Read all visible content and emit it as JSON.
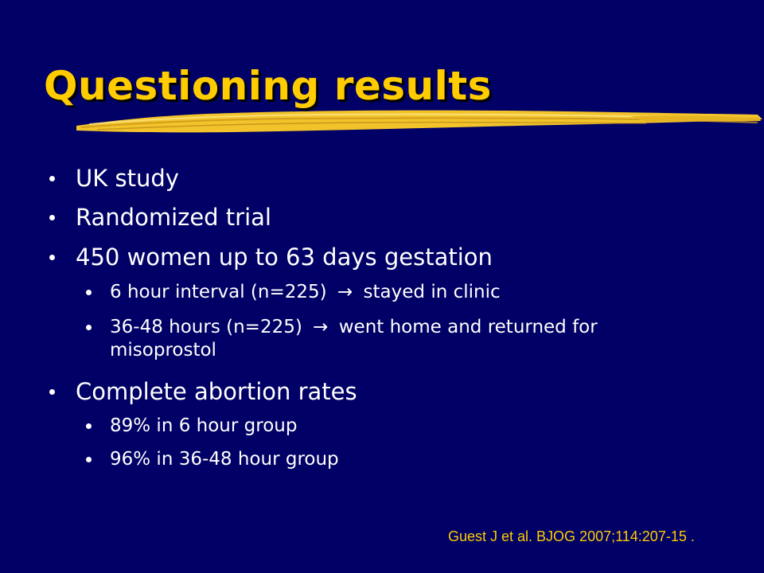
{
  "slide": {
    "title": "Questioning results",
    "bullets": [
      {
        "text": "UK study"
      },
      {
        "text": "Randomized trial"
      },
      {
        "text": "450 women up to 63 days gestation"
      },
      {
        "pre": "6 hour interval (n=225)",
        "arrow": "→",
        "post": "stayed in clinic"
      },
      {
        "pre": "36-48 hours (n=225)",
        "arrow": "→",
        "post": "went home and returned for",
        "line2": "misoprostol"
      },
      {
        "text": "Complete abortion rates"
      },
      {
        "text": "89% in 6 hour group"
      },
      {
        "text": "96% in 36-48 hour group"
      }
    ],
    "citation": "Guest J et al. BJOG 2007;114:207-15 ."
  },
  "colors": {
    "background": "#000066",
    "title": "#ffcc00",
    "text": "#ffffff",
    "citation": "#ffcc00",
    "brush_stroke": "#f2c32a"
  }
}
